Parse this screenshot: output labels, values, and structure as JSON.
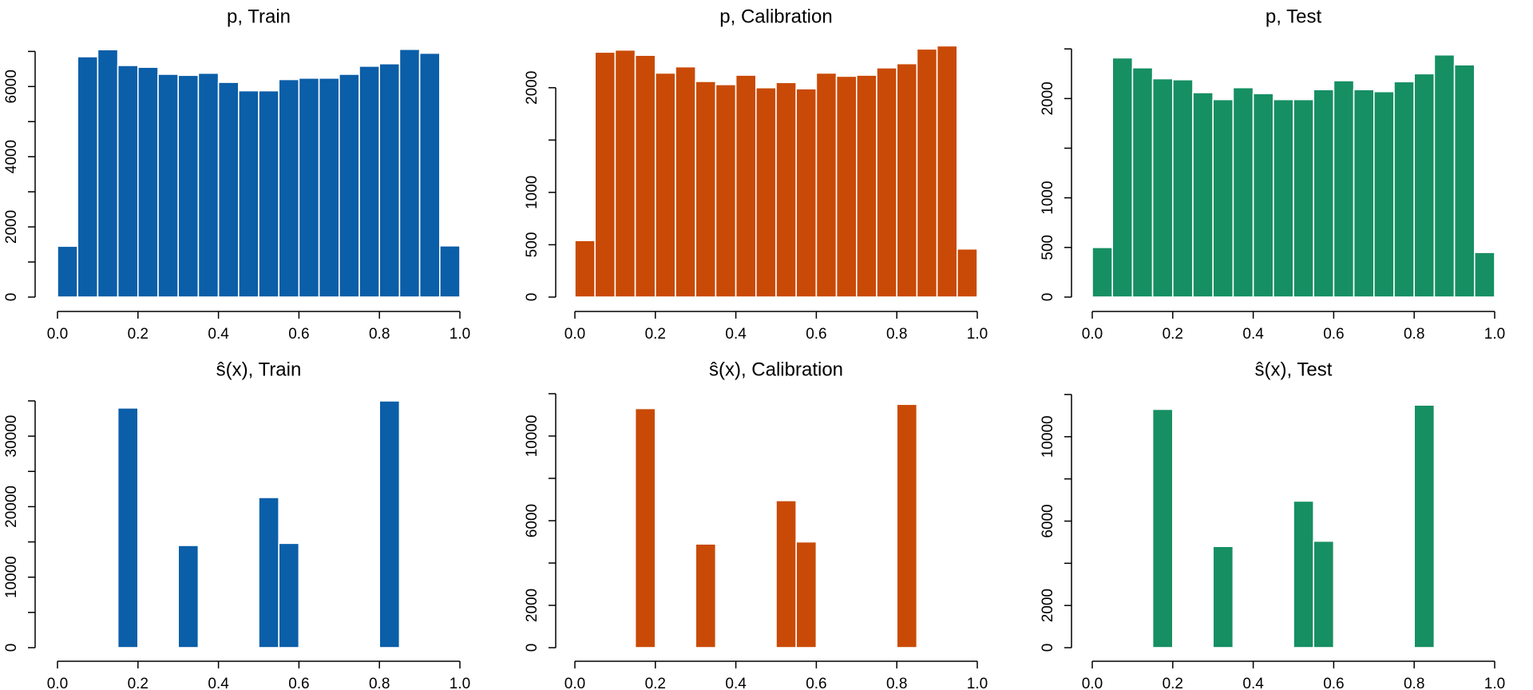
{
  "colors": {
    "train": "#0b5ea8",
    "calibration": "#c94a06",
    "test": "#168f63",
    "bar_border": "#ffffff"
  },
  "chart_data": [
    {
      "type": "bar",
      "title": "p, Train",
      "x": [
        0.025,
        0.075,
        0.125,
        0.175,
        0.225,
        0.275,
        0.325,
        0.375,
        0.425,
        0.475,
        0.525,
        0.575,
        0.625,
        0.675,
        0.725,
        0.775,
        0.825,
        0.875,
        0.925,
        0.975
      ],
      "bin_width": 0.05,
      "values": [
        1450,
        6850,
        7050,
        6600,
        6550,
        6350,
        6320,
        6380,
        6120,
        5880,
        5880,
        6200,
        6240,
        6240,
        6350,
        6580,
        6650,
        7060,
        6950,
        1460
      ],
      "xlim": [
        0,
        1
      ],
      "ylim": [
        0,
        7100
      ],
      "xticks": [
        "0.0",
        "0.2",
        "0.4",
        "0.6",
        "0.8",
        "1.0"
      ],
      "yticks": [
        "0",
        "2000",
        "4000",
        "6000"
      ],
      "ytick_values": [
        0,
        2000,
        4000,
        6000
      ],
      "minor_yticks": [
        1000,
        3000,
        5000,
        7000
      ],
      "color_key": "train"
    },
    {
      "type": "bar",
      "title": "p, Calibration",
      "x": [
        0.025,
        0.075,
        0.125,
        0.175,
        0.225,
        0.275,
        0.325,
        0.375,
        0.425,
        0.475,
        0.525,
        0.575,
        0.625,
        0.675,
        0.725,
        0.775,
        0.825,
        0.875,
        0.925,
        0.975
      ],
      "bin_width": 0.05,
      "values": [
        540,
        2340,
        2360,
        2310,
        2140,
        2200,
        2060,
        2030,
        2120,
        2000,
        2050,
        1990,
        2140,
        2110,
        2120,
        2190,
        2230,
        2370,
        2400,
        460
      ],
      "xlim": [
        0,
        1
      ],
      "ylim": [
        0,
        2380
      ],
      "xticks": [
        "0.0",
        "0.2",
        "0.4",
        "0.6",
        "0.8",
        "1.0"
      ],
      "yticks": [
        "0",
        "500",
        "1000",
        "2000"
      ],
      "ytick_values": [
        0,
        500,
        1000,
        2000
      ],
      "minor_yticks": [
        1500
      ],
      "color_key": "calibration"
    },
    {
      "type": "bar",
      "title": "p, Test",
      "x": [
        0.025,
        0.075,
        0.125,
        0.175,
        0.225,
        0.275,
        0.325,
        0.375,
        0.425,
        0.475,
        0.525,
        0.575,
        0.625,
        0.675,
        0.725,
        0.775,
        0.825,
        0.875,
        0.925,
        0.975
      ],
      "bin_width": 0.05,
      "values": [
        500,
        2410,
        2310,
        2200,
        2190,
        2060,
        1990,
        2110,
        2050,
        1990,
        1990,
        2090,
        2180,
        2090,
        2070,
        2170,
        2250,
        2440,
        2340,
        450
      ],
      "xlim": [
        0,
        1
      ],
      "ylim": [
        0,
        2510
      ],
      "xticks": [
        "0.0",
        "0.2",
        "0.4",
        "0.6",
        "0.8",
        "1.0"
      ],
      "yticks": [
        "0",
        "500",
        "1000",
        "2000"
      ],
      "ytick_values": [
        0,
        500,
        1000,
        2000
      ],
      "minor_yticks": [
        1500,
        2500
      ],
      "color_key": "test"
    },
    {
      "type": "bar",
      "title": "ŝ(x), Train",
      "x": [
        0.175,
        0.325,
        0.525,
        0.575,
        0.825
      ],
      "bin_width": 0.05,
      "values": [
        34000,
        14500,
        21300,
        14800,
        35000
      ],
      "xlim": [
        0,
        1
      ],
      "ylim": [
        0,
        35000
      ],
      "xticks": [
        "0.0",
        "0.2",
        "0.4",
        "0.6",
        "0.8",
        "1.0"
      ],
      "yticks": [
        "0",
        "10000",
        "20000",
        "30000"
      ],
      "ytick_values": [
        0,
        10000,
        20000,
        30000
      ],
      "minor_yticks": [
        5000,
        15000,
        25000,
        35000
      ],
      "color_key": "train"
    },
    {
      "type": "bar",
      "title": "ŝ(x), Calibration",
      "x": [
        0.175,
        0.325,
        0.525,
        0.575,
        0.825
      ],
      "bin_width": 0.05,
      "values": [
        11300,
        4900,
        6950,
        5000,
        11500
      ],
      "xlim": [
        0,
        1
      ],
      "ylim": [
        0,
        12000
      ],
      "xticks": [
        "0.0",
        "0.2",
        "0.4",
        "0.6",
        "0.8",
        "1.0"
      ],
      "yticks": [
        "0",
        "2000",
        "6000",
        "10000"
      ],
      "ytick_values": [
        0,
        2000,
        6000,
        10000
      ],
      "minor_yticks": [
        4000,
        8000,
        12000
      ],
      "color_key": "calibration"
    },
    {
      "type": "bar",
      "title": "ŝ(x), Test",
      "x": [
        0.175,
        0.325,
        0.525,
        0.575,
        0.825
      ],
      "bin_width": 0.05,
      "values": [
        11300,
        4800,
        6950,
        5050,
        11500
      ],
      "xlim": [
        0,
        1
      ],
      "ylim": [
        0,
        12000
      ],
      "xticks": [
        "0.0",
        "0.2",
        "0.4",
        "0.6",
        "0.8",
        "1.0"
      ],
      "yticks": [
        "0",
        "2000",
        "6000",
        "10000"
      ],
      "ytick_values": [
        0,
        2000,
        6000,
        10000
      ],
      "minor_yticks": [
        4000,
        8000,
        12000
      ],
      "color_key": "test"
    }
  ]
}
